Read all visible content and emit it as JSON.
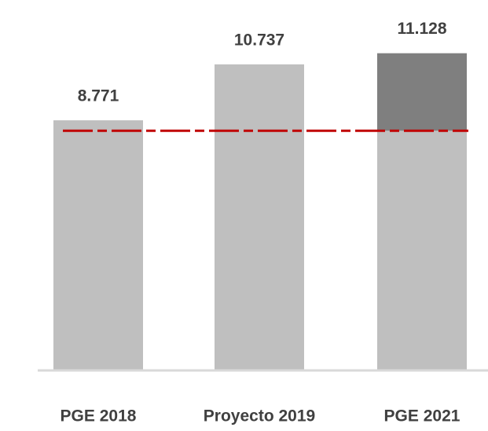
{
  "chart_data": {
    "type": "stacked_bar",
    "categories": [
      "PGE 2018",
      "Proyecto 2019",
      "PGE 2021"
    ],
    "series": [
      {
        "color": "#bfbfbf",
        "values": [
          8.771,
          10.737,
          8.4
        ]
      },
      {
        "color": "#7f7f7f",
        "values": [
          null,
          null,
          2.728
        ]
      }
    ],
    "totals": [
      8.771,
      10.737,
      11.128
    ],
    "reference_line": 8.4,
    "reference_color": "#c00000",
    "ylim": [
      0,
      13
    ]
  }
}
